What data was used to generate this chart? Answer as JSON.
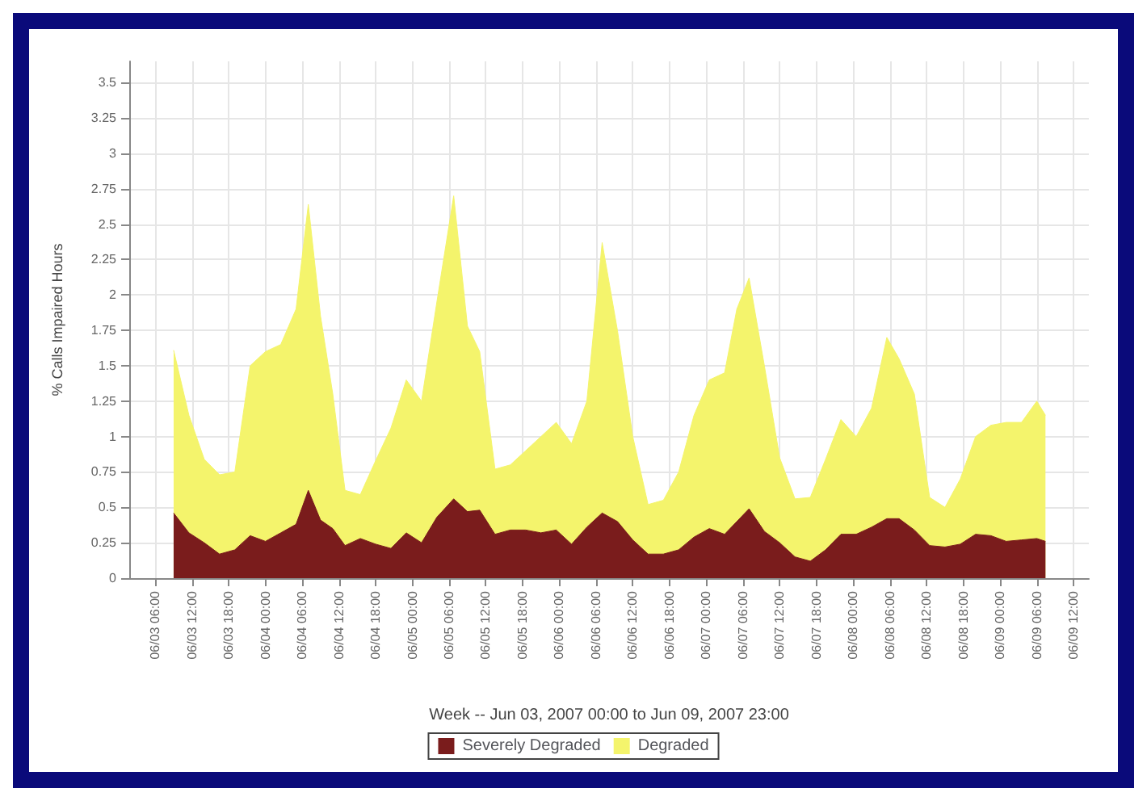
{
  "chart_data": {
    "type": "area",
    "stacked": true,
    "xlabel": "Week -- Jun 03, 2007 00:00 to Jun 09, 2007 23:00",
    "ylabel": "% Calls Impaired Hours",
    "x": [
      "2007-06-03T09:00",
      "2007-06-03T11:30",
      "2007-06-03T14:00",
      "2007-06-03T16:30",
      "2007-06-03T19:00",
      "2007-06-03T21:30",
      "2007-06-04T00:00",
      "2007-06-04T02:30",
      "2007-06-04T05:00",
      "2007-06-04T07:00",
      "2007-06-04T09:00",
      "2007-06-04T11:00",
      "2007-06-04T13:00",
      "2007-06-04T15:30",
      "2007-06-04T18:00",
      "2007-06-04T20:30",
      "2007-06-04T23:00",
      "2007-06-05T01:30",
      "2007-06-05T04:00",
      "2007-06-05T06:45",
      "2007-06-05T09:00",
      "2007-06-05T11:00",
      "2007-06-05T13:30",
      "2007-06-05T16:00",
      "2007-06-05T18:30",
      "2007-06-05T21:00",
      "2007-06-05T23:30",
      "2007-06-06T02:00",
      "2007-06-06T04:30",
      "2007-06-06T07:00",
      "2007-06-06T09:30",
      "2007-06-06T12:00",
      "2007-06-06T14:30",
      "2007-06-06T17:00",
      "2007-06-06T19:30",
      "2007-06-06T22:00",
      "2007-06-07T00:30",
      "2007-06-07T03:00",
      "2007-06-07T05:00",
      "2007-06-07T07:00",
      "2007-06-07T09:30",
      "2007-06-07T12:00",
      "2007-06-07T14:30",
      "2007-06-07T17:00",
      "2007-06-07T19:30",
      "2007-06-07T22:00",
      "2007-06-08T00:30",
      "2007-06-08T03:00",
      "2007-06-08T05:30",
      "2007-06-08T07:30",
      "2007-06-08T10:00",
      "2007-06-08T12:30",
      "2007-06-08T15:00",
      "2007-06-08T17:30",
      "2007-06-08T20:00",
      "2007-06-08T22:30",
      "2007-06-09T01:00",
      "2007-06-09T03:30",
      "2007-06-09T06:00",
      "2007-06-09T07:25"
    ],
    "series": [
      {
        "name": "Severely Degraded",
        "color": "#7a1c1c",
        "values": [
          0.46,
          0.32,
          0.25,
          0.17,
          0.2,
          0.3,
          0.26,
          0.32,
          0.38,
          0.62,
          0.41,
          0.35,
          0.23,
          0.28,
          0.24,
          0.21,
          0.32,
          0.25,
          0.43,
          0.56,
          0.47,
          0.48,
          0.31,
          0.34,
          0.34,
          0.32,
          0.34,
          0.24,
          0.36,
          0.46,
          0.4,
          0.27,
          0.17,
          0.17,
          0.2,
          0.29,
          0.35,
          0.31,
          0.4,
          0.49,
          0.33,
          0.25,
          0.15,
          0.12,
          0.2,
          0.31,
          0.31,
          0.36,
          0.42,
          0.42,
          0.34,
          0.23,
          0.22,
          0.24,
          0.31,
          0.3,
          0.26,
          0.27,
          0.28,
          0.26
        ]
      },
      {
        "name": "Degraded",
        "color": "#f4f46c",
        "values": [
          1.15,
          0.83,
          0.59,
          0.56,
          0.55,
          1.2,
          1.34,
          1.33,
          1.52,
          2.02,
          1.44,
          0.95,
          0.39,
          0.31,
          0.59,
          0.85,
          1.08,
          1.0,
          1.52,
          2.14,
          1.31,
          1.12,
          0.46,
          0.46,
          0.56,
          0.68,
          0.76,
          0.71,
          0.89,
          1.91,
          1.35,
          0.73,
          0.35,
          0.38,
          0.55,
          0.86,
          1.05,
          1.14,
          1.5,
          1.63,
          1.17,
          0.6,
          0.41,
          0.45,
          0.64,
          0.81,
          0.69,
          0.84,
          1.28,
          1.13,
          0.96,
          0.34,
          0.28,
          0.46,
          0.69,
          0.78,
          0.84,
          0.83,
          0.97,
          0.89
        ]
      }
    ],
    "xlim": [
      "2007-06-03T01:45",
      "2007-06-09T14:30"
    ],
    "xticks": [
      {
        "value": "2007-06-03T06:00",
        "label": "06/03 06:00"
      },
      {
        "value": "2007-06-03T12:00",
        "label": "06/03 12:00"
      },
      {
        "value": "2007-06-03T18:00",
        "label": "06/03 18:00"
      },
      {
        "value": "2007-06-04T00:00",
        "label": "06/04 00:00"
      },
      {
        "value": "2007-06-04T06:00",
        "label": "06/04 06:00"
      },
      {
        "value": "2007-06-04T12:00",
        "label": "06/04 12:00"
      },
      {
        "value": "2007-06-04T18:00",
        "label": "06/04 18:00"
      },
      {
        "value": "2007-06-05T00:00",
        "label": "06/05 00:00"
      },
      {
        "value": "2007-06-05T06:00",
        "label": "06/05 06:00"
      },
      {
        "value": "2007-06-05T12:00",
        "label": "06/05 12:00"
      },
      {
        "value": "2007-06-05T18:00",
        "label": "06/05 18:00"
      },
      {
        "value": "2007-06-06T00:00",
        "label": "06/06 00:00"
      },
      {
        "value": "2007-06-06T06:00",
        "label": "06/06 06:00"
      },
      {
        "value": "2007-06-06T12:00",
        "label": "06/06 12:00"
      },
      {
        "value": "2007-06-06T18:00",
        "label": "06/06 18:00"
      },
      {
        "value": "2007-06-07T00:00",
        "label": "06/07 00:00"
      },
      {
        "value": "2007-06-07T06:00",
        "label": "06/07 06:00"
      },
      {
        "value": "2007-06-07T12:00",
        "label": "06/07 12:00"
      },
      {
        "value": "2007-06-07T18:00",
        "label": "06/07 18:00"
      },
      {
        "value": "2007-06-08T00:00",
        "label": "06/08 00:00"
      },
      {
        "value": "2007-06-08T06:00",
        "label": "06/08 06:00"
      },
      {
        "value": "2007-06-08T12:00",
        "label": "06/08 12:00"
      },
      {
        "value": "2007-06-08T18:00",
        "label": "06/08 18:00"
      },
      {
        "value": "2007-06-09T00:00",
        "label": "06/09 00:00"
      },
      {
        "value": "2007-06-09T06:00",
        "label": "06/09 06:00"
      },
      {
        "value": "2007-06-09T12:00",
        "label": "06/09 12:00"
      }
    ],
    "ylim": [
      0,
      3.65
    ],
    "yticks": [
      0,
      0.25,
      0.5,
      0.75,
      1,
      1.25,
      1.5,
      1.75,
      2,
      2.25,
      2.5,
      2.75,
      3,
      3.25,
      3.5
    ],
    "grid": true,
    "legend": "bottom",
    "marker": "none"
  }
}
